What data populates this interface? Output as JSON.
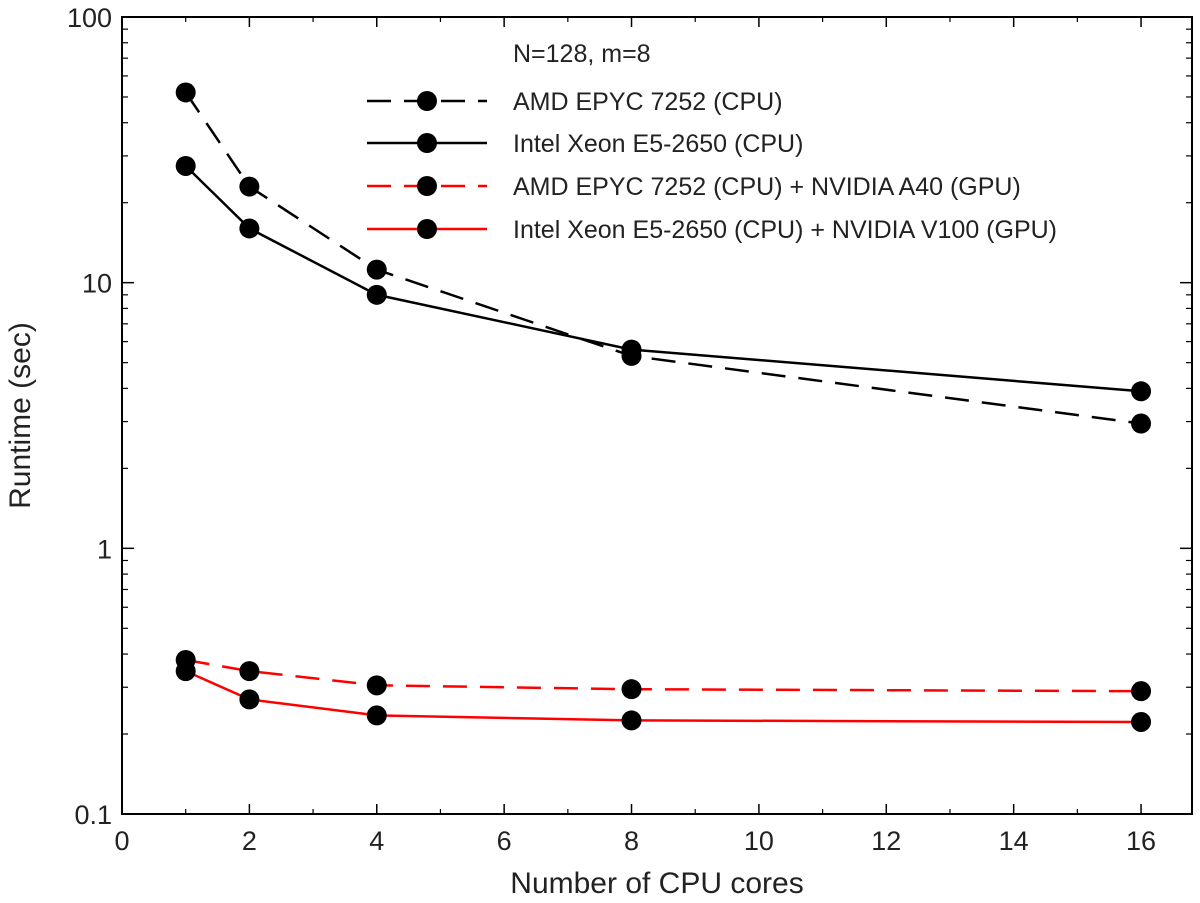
{
  "chart_data": {
    "type": "line",
    "xlabel": "Number of CPU cores",
    "ylabel": "Runtime (sec)",
    "yscale": "log",
    "xlim": [
      0,
      16.8
    ],
    "ylim": [
      0.1,
      100
    ],
    "xticks": [
      0,
      2,
      4,
      6,
      8,
      10,
      12,
      14,
      16
    ],
    "xtick_labels": [
      "0",
      "2",
      "4",
      "6",
      "8",
      "10",
      "12",
      "14",
      "16"
    ],
    "yticks": [
      0.1,
      1,
      10,
      100
    ],
    "ytick_labels": [
      "0.1",
      "1",
      "10",
      "100"
    ],
    "legend_title": "N=128, m=8",
    "legend_position": "top-right",
    "x": [
      1,
      2,
      4,
      8,
      16
    ],
    "series": [
      {
        "name": "AMD EPYC 7252 (CPU)",
        "color": "#000000",
        "dash": "dashed",
        "values": [
          52,
          23,
          11.2,
          5.3,
          2.95
        ]
      },
      {
        "name": "Intel Xeon E5-2650 (CPU)",
        "color": "#000000",
        "dash": "solid",
        "values": [
          27.5,
          16,
          9.0,
          5.6,
          3.9
        ]
      },
      {
        "name": "AMD EPYC 7252 (CPU) + NVIDIA A40 (GPU)",
        "color": "#ff0000",
        "dash": "dashed",
        "values": [
          0.38,
          0.345,
          0.305,
          0.295,
          0.29
        ]
      },
      {
        "name": "Intel Xeon E5-2650 (CPU) + NVIDIA V100 (GPU)",
        "color": "#ff0000",
        "dash": "solid",
        "values": [
          0.345,
          0.27,
          0.235,
          0.225,
          0.222
        ]
      }
    ]
  }
}
